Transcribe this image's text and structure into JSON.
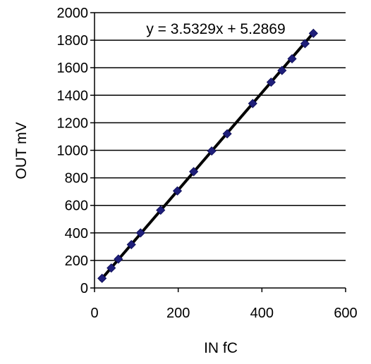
{
  "chart_data": {
    "type": "scatter",
    "xlabel": "IN fC",
    "ylabel": "OUT mV",
    "xlim": [
      0,
      600
    ],
    "ylim": [
      0,
      2000
    ],
    "xticks": [
      0,
      200,
      400,
      600
    ],
    "yticks": [
      0,
      200,
      400,
      600,
      800,
      1000,
      1200,
      1400,
      1600,
      1800,
      2000
    ],
    "grid": "horizontal",
    "marker_color": "#1f1f7a",
    "line_color": "#000000",
    "points": [
      {
        "x": 18,
        "y": 70
      },
      {
        "x": 40,
        "y": 145
      },
      {
        "x": 57,
        "y": 210
      },
      {
        "x": 88,
        "y": 315
      },
      {
        "x": 110,
        "y": 400
      },
      {
        "x": 158,
        "y": 565
      },
      {
        "x": 198,
        "y": 705
      },
      {
        "x": 237,
        "y": 845
      },
      {
        "x": 280,
        "y": 995
      },
      {
        "x": 317,
        "y": 1120
      },
      {
        "x": 378,
        "y": 1340
      },
      {
        "x": 422,
        "y": 1495
      },
      {
        "x": 448,
        "y": 1580
      },
      {
        "x": 472,
        "y": 1665
      },
      {
        "x": 503,
        "y": 1775
      },
      {
        "x": 523,
        "y": 1850
      }
    ],
    "trendline": {
      "slope": 3.5329,
      "intercept": 5.2869,
      "x_range": [
        15,
        525
      ],
      "equation": "y = 3.5329x + 5.2869"
    }
  }
}
